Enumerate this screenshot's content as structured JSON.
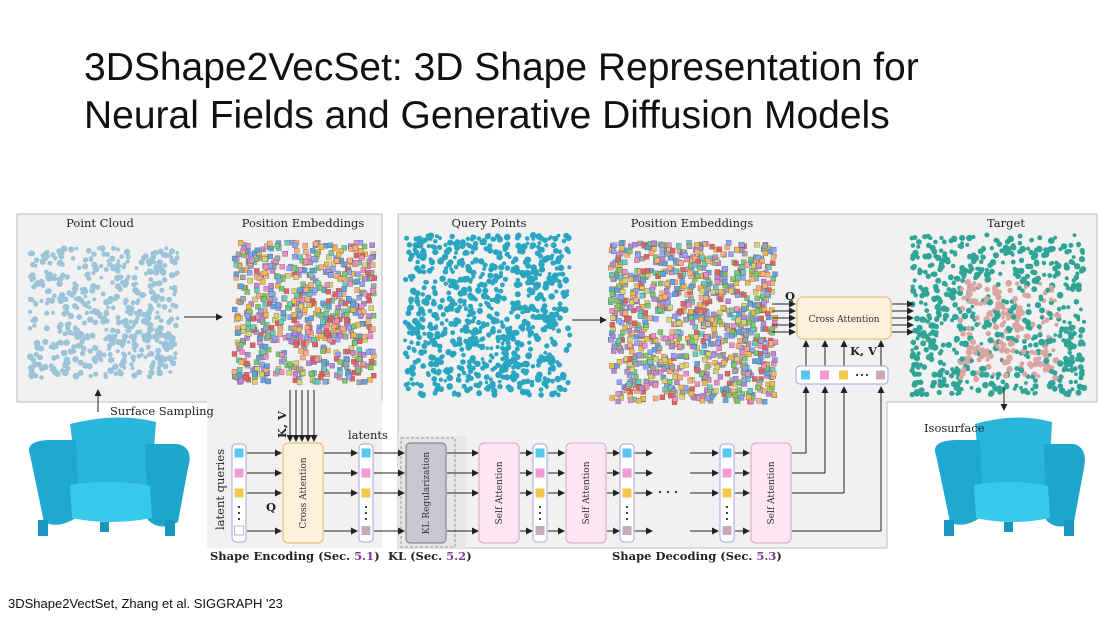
{
  "slide": {
    "title_line1": "3DShape2VecSet: 3D Shape Representation for",
    "title_line2": "Neural Fields and Generative Diffusion Models",
    "caption": "3DShape2VectSet, Zhang et al. SIGGRAPH '23"
  },
  "diagram": {
    "labels": {
      "point_cloud": "Point Cloud",
      "position_embeddings_left": "Position Embeddings",
      "query_points": "Query Points",
      "position_embeddings_right": "Position Embeddings",
      "target": "Target",
      "surface_sampling": "Surface Sampling",
      "isosurface": "Isosurface",
      "kv_left": "K, V",
      "kv_right": "K, V",
      "q_left": "Q",
      "q_right": "Q",
      "latents": "latents",
      "latent_queries": "latent queries",
      "ellipsis": "· · ·"
    },
    "blocks": {
      "cross_attention_left": "Cross Attention",
      "cross_attention_right": "Cross Attention",
      "kl_regularization": "KL Regularization",
      "self_attention": "Self Attention"
    },
    "sections": {
      "encoding_text": "Shape Encoding (Sec. ",
      "encoding_num": "5.1",
      "kl_text": "KL (Sec. ",
      "kl_num": "5.2",
      "decoding_text": "Shape Decoding (Sec. ",
      "decoding_num": "5.3",
      "close": ")"
    },
    "colors": {
      "panel_bg": "#f1f1f1",
      "point_cloud": "#9cc4d8",
      "query_points": "#2aa6c0",
      "target_teal": "#2fa497",
      "target_pink": "#d9a5a0",
      "cross_attention_fill": "#fdf0dc",
      "cross_attention_border": "#e9b36a",
      "kl_fill": "#c8c8d4",
      "self_attention_fill": "#fbe6f1",
      "self_attention_border": "#d8a7c4",
      "latent_box_border": "#9ea8e0",
      "token_blue": "#58c6ee",
      "token_pink": "#f29ad2",
      "token_yellow": "#f3c84a",
      "token_gray": "#c7a9ba",
      "chair": "#2ec4e6",
      "section_number": "#7a3a9a"
    }
  }
}
